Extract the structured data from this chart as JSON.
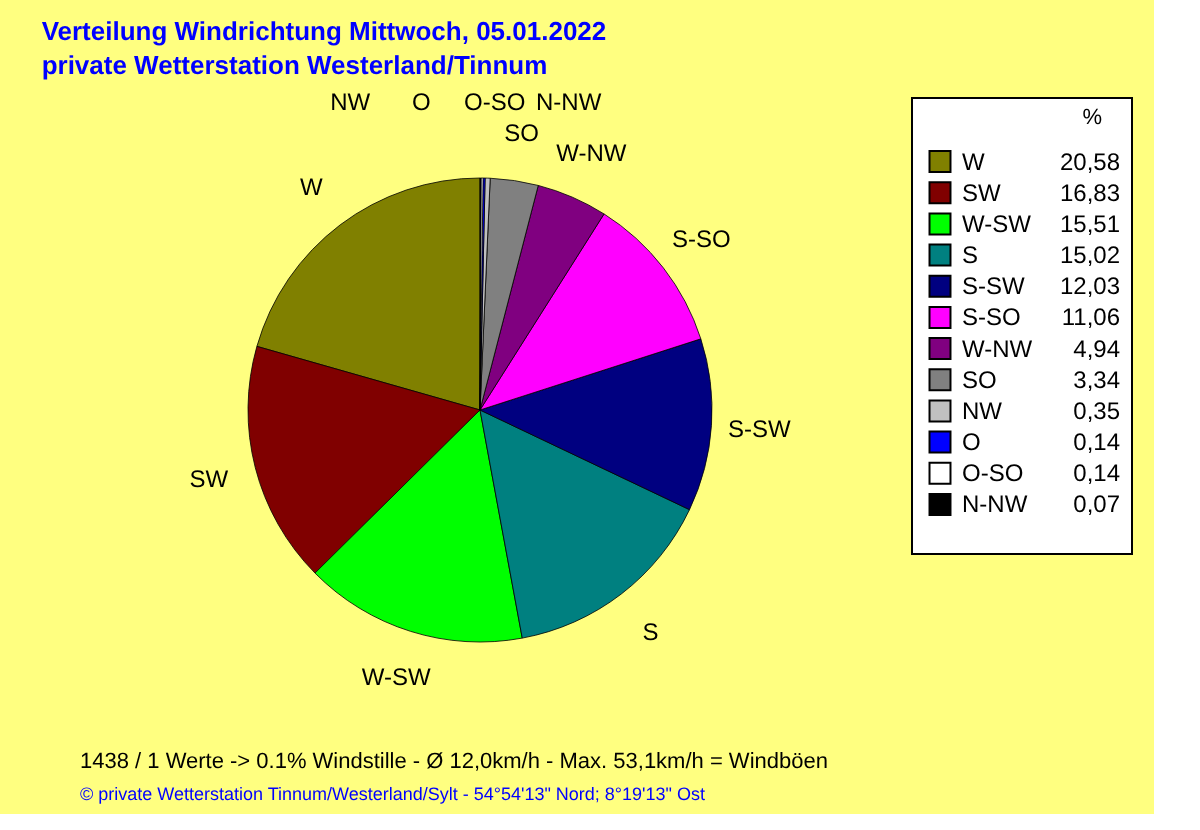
{
  "chart_data": {
    "type": "pie",
    "title": "Verteilung Windrichtung   Mittwoch, 05.01.2022",
    "subtitle": "private Wetterstation Westerland/Tinnum",
    "legend_title": "%",
    "legend": "right",
    "categories": [
      "W",
      "SW",
      "W-SW",
      "S",
      "S-SW",
      "S-SO",
      "W-NW",
      "SO",
      "NW",
      "O",
      "O-SO",
      "N-NW"
    ],
    "values": [
      20.58,
      16.83,
      15.51,
      15.02,
      12.03,
      11.06,
      4.94,
      3.34,
      0.35,
      0.14,
      0.14,
      0.07
    ],
    "value_labels": [
      "20,58",
      "16,83",
      "15,51",
      "15,02",
      "12,03",
      "11,06",
      "4,94",
      "3,34",
      "0,35",
      "0,14",
      "0,14",
      "0,07"
    ],
    "colors": [
      "#808000",
      "#800000",
      "#00ff00",
      "#008080",
      "#000080",
      "#ff00ff",
      "#800080",
      "#808080",
      "#c0c0c0",
      "#0000ff",
      "#ffffff",
      "#000000"
    ],
    "annotations": [
      "1438 / 1 Werte  -> 0.1% Windstille   -   Ø 12,0km/h  -  Max. 53,1km/h = Windböen",
      "© private Wetterstation Tinnum/Westerland/Sylt   -   54°54'13\" Nord; 8°19'13\" Ost"
    ]
  }
}
